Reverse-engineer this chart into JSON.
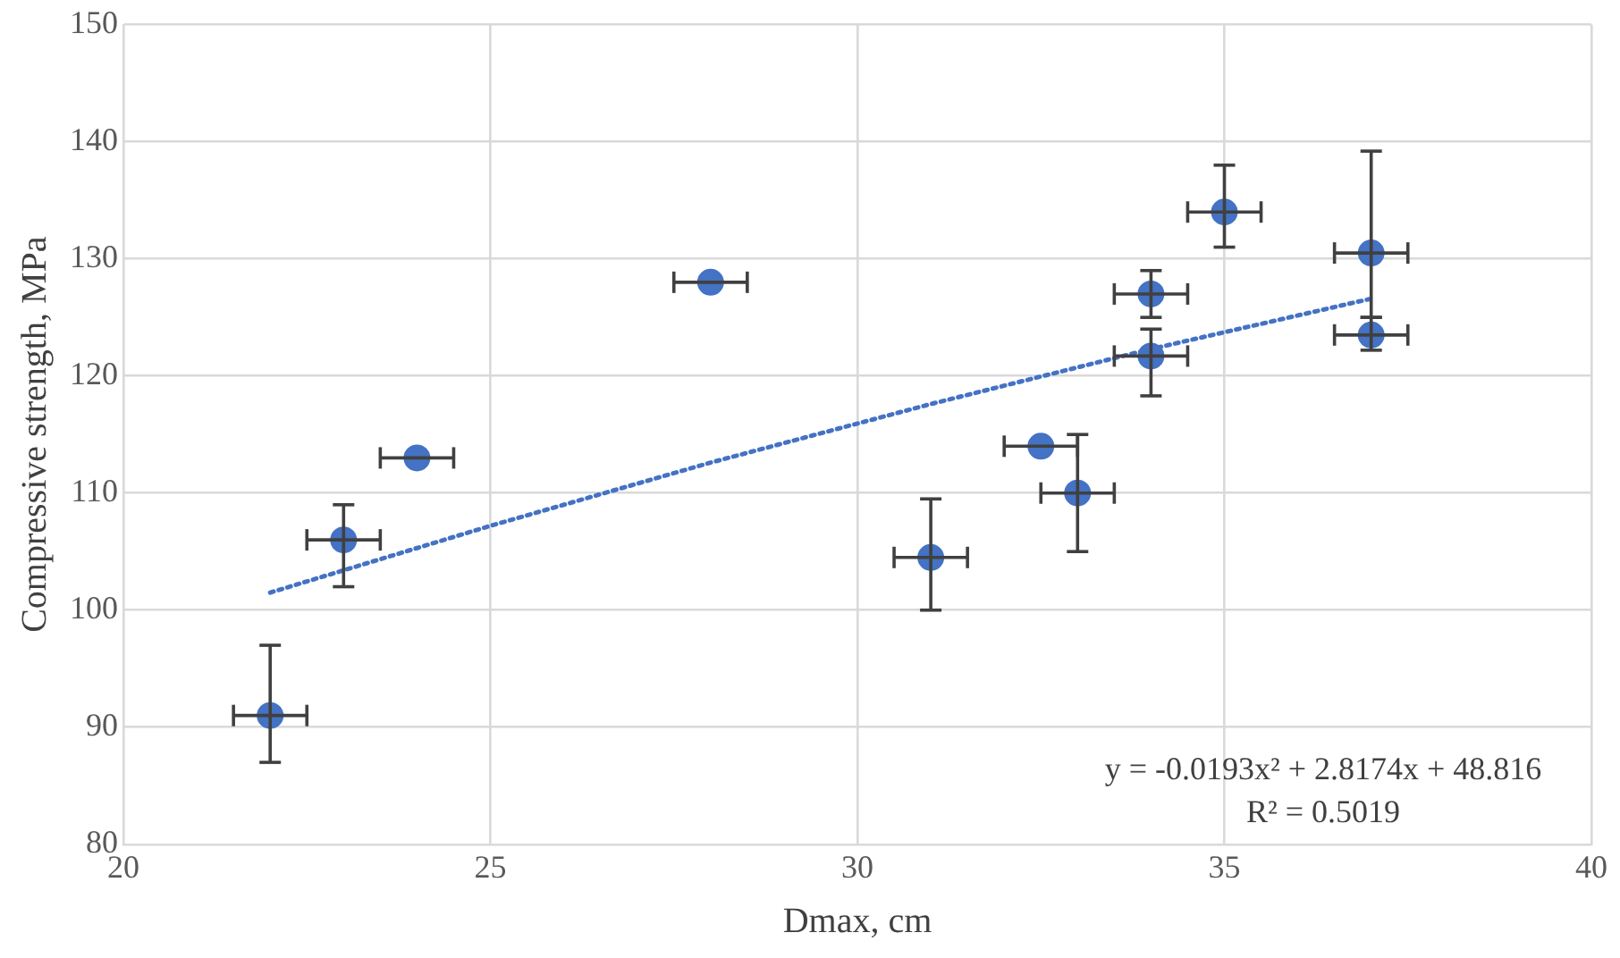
{
  "chart_data": {
    "type": "scatter",
    "xlabel": "Dmax, cm",
    "ylabel": "Compressive strength, MPa",
    "xlim": [
      20,
      40
    ],
    "xticks": [
      20,
      25,
      30,
      35,
      40
    ],
    "ylim": [
      80,
      150
    ],
    "yticks": [
      80,
      90,
      100,
      110,
      120,
      130,
      140,
      150
    ],
    "grid": true,
    "legend": false,
    "marker": "circle",
    "series": [
      {
        "type": "scatter",
        "color": "#4472c4",
        "x": [
          22,
          23,
          24,
          28,
          31,
          32.5,
          33,
          34,
          34,
          35,
          37,
          37
        ],
        "values": [
          91,
          106,
          113,
          128,
          104.5,
          114,
          110,
          127,
          121.7,
          134,
          130.5,
          123.5
        ],
        "errors": [
          [
            87,
            97
          ],
          [
            102,
            109
          ],
          null,
          null,
          [
            100,
            109.5
          ],
          null,
          [
            105,
            115
          ],
          [
            125,
            129
          ],
          [
            118.3,
            124
          ],
          [
            131,
            138
          ],
          [
            125,
            139.2
          ],
          [
            122.2,
            125
          ]
        ],
        "xerrors": [
          0.5,
          0.5,
          0.5,
          0.5,
          0.5,
          0.5,
          0.5,
          0.5,
          0.5,
          0.5,
          0.5,
          0.5
        ]
      },
      {
        "type": "line",
        "color": "#4472c4",
        "line_style": "dotted",
        "marker": "none",
        "x": [
          22,
          25,
          28,
          31,
          34,
          37
        ],
        "values": [
          101.5,
          107.2,
          112.6,
          117.6,
          122.3,
          126.6
        ]
      }
    ],
    "annotations": [
      "y = -0.0193x² + 2.8174x + 48.816",
      "R² = 0.5019"
    ]
  }
}
